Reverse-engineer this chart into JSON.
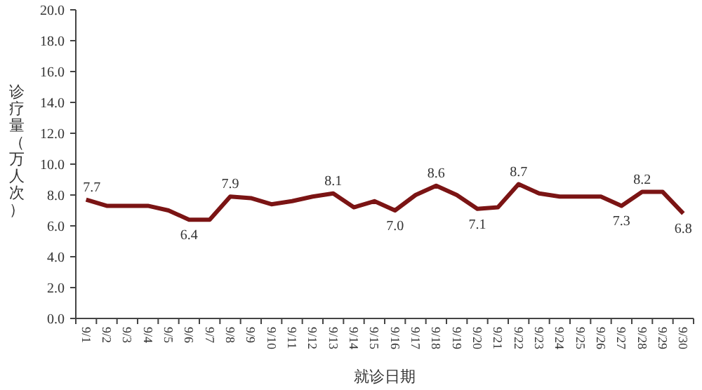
{
  "chart_data": {
    "type": "line",
    "xlabel": "就诊日期",
    "ylabel": "诊疗量（万人次）",
    "categories": [
      "9/1",
      "9/2",
      "9/3",
      "9/4",
      "9/5",
      "9/6",
      "9/7",
      "9/8",
      "9/9",
      "9/10",
      "9/11",
      "9/12",
      "9/13",
      "9/14",
      "9/15",
      "9/16",
      "9/17",
      "9/18",
      "9/19",
      "9/20",
      "9/21",
      "9/22",
      "9/23",
      "9/24",
      "9/25",
      "9/26",
      "9/27",
      "9/28",
      "9/29",
      "9/30"
    ],
    "series": [
      {
        "color": "#7b1414",
        "values": [
          7.7,
          7.3,
          7.3,
          7.3,
          7.0,
          6.4,
          6.4,
          7.9,
          7.8,
          7.4,
          7.6,
          7.9,
          8.1,
          7.2,
          7.6,
          7.0,
          8.0,
          8.6,
          8.0,
          7.1,
          7.2,
          8.7,
          8.1,
          7.9,
          7.9,
          7.9,
          7.3,
          8.2,
          8.2,
          6.8
        ],
        "value_labels": [
          "7.7",
          null,
          null,
          null,
          null,
          "6.4",
          null,
          "7.9",
          null,
          null,
          null,
          null,
          "8.1",
          null,
          null,
          "7.0",
          null,
          "8.6",
          null,
          "7.1",
          null,
          "8.7",
          null,
          null,
          null,
          null,
          "7.3",
          "8.2",
          null,
          "6.8"
        ]
      }
    ],
    "ylim": [
      0,
      20
    ],
    "yticks": [
      "0.0",
      "2.0",
      "4.0",
      "6.0",
      "8.0",
      "10.0",
      "12.0",
      "14.0",
      "16.0",
      "18.0",
      "20.0"
    ],
    "grid": false,
    "marker": "none",
    "line_style": "solid"
  }
}
